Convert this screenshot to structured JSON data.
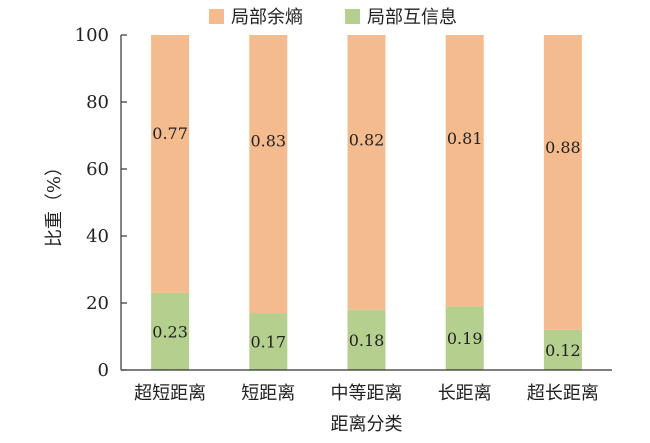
{
  "chart_data": {
    "type": "bar",
    "stacked": true,
    "categories": [
      "超短距离",
      "短距离",
      "中等距离",
      "长距离",
      "超长距离"
    ],
    "series": [
      {
        "name": "局部互信息",
        "values": [
          0.23,
          0.17,
          0.18,
          0.19,
          0.12
        ],
        "labels": [
          "0.23",
          "0.17",
          "0.18",
          "0.19",
          "0.12"
        ],
        "color": "#b5cf8e"
      },
      {
        "name": "局部余熵",
        "values": [
          0.77,
          0.83,
          0.82,
          0.81,
          0.88
        ],
        "labels": [
          "0.77",
          "0.83",
          "0.82",
          "0.81",
          "0.88"
        ],
        "color": "#f4bb8e"
      }
    ],
    "legend_order": [
      "局部余熵",
      "局部互信息"
    ],
    "legend_position": "top",
    "xlabel": "距离分类",
    "ylabel": "比重（%）",
    "ylim": [
      0,
      100
    ],
    "yticks": [
      "0",
      "20",
      "40",
      "60",
      "80",
      "100"
    ],
    "grid": false
  }
}
